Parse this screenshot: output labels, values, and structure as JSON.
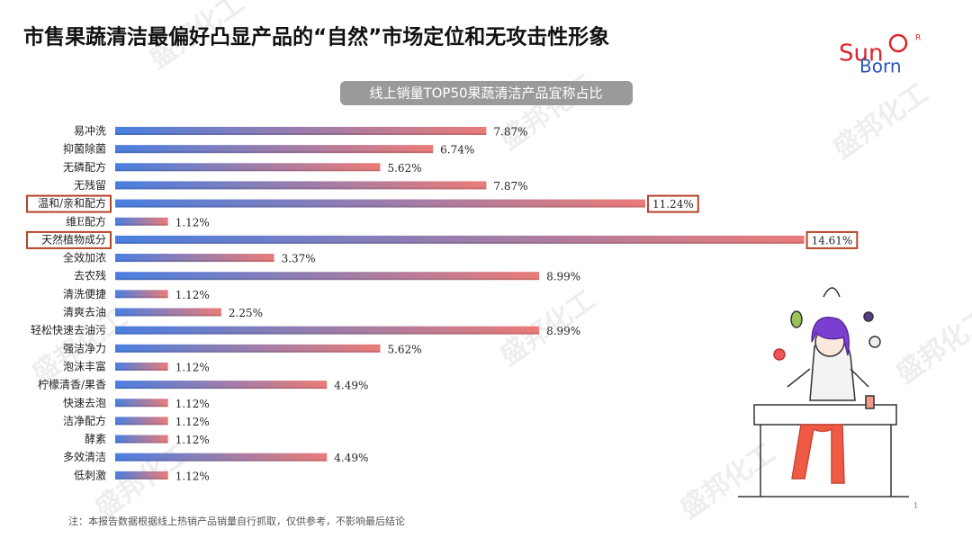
{
  "title": "市售果蔬清洁最偏好凸显产品的“自然”市场定位和无攻击性形象",
  "logo": {
    "sun": "Sun",
    "born": "Born",
    "mark": "R"
  },
  "watermark": "盛邦化工",
  "note": "注：本报告数据根据线上热销产品销量自行抓取，仅供参考，不影响最后结论",
  "page_number": "1",
  "chart_data": {
    "type": "hbar",
    "title": "线上销量TOP50果蔬清洁产品宜称占比",
    "categories": [
      "易冲洗",
      "抑菌除菌",
      "无磷配方",
      "无残留",
      "温和/亲和配方",
      "维E配方",
      "天然植物成分",
      "全效加浓",
      "去农残",
      "清洗便捷",
      "清爽去油",
      "轻松快速去油污",
      "强洁净力",
      "泡沫丰富",
      "柠檬清香/果香",
      "快速去泡",
      "洁净配方",
      "酵素",
      "多效清洁",
      "低刺激"
    ],
    "values": [
      7.87,
      6.74,
      5.62,
      7.87,
      11.24,
      1.12,
      14.61,
      3.37,
      8.99,
      1.12,
      2.25,
      8.99,
      5.62,
      1.12,
      4.49,
      1.12,
      1.12,
      1.12,
      4.49,
      1.12
    ],
    "value_labels": [
      "7.87%",
      "6.74%",
      "5.62%",
      "7.87%",
      "11.24%",
      "1.12%",
      "14.61%",
      "3.37%",
      "8.99%",
      "1.12%",
      "2.25%",
      "8.99%",
      "5.62%",
      "1.12%",
      "4.49%",
      "1.12%",
      "1.12%",
      "1.12%",
      "4.49%",
      "1.12%"
    ],
    "color_start": "#4a7fe0",
    "color_end": "#ea7b78",
    "highlight": [
      4,
      6
    ],
    "highlight_color": "#b5442a",
    "xlim": [
      0,
      15
    ]
  }
}
